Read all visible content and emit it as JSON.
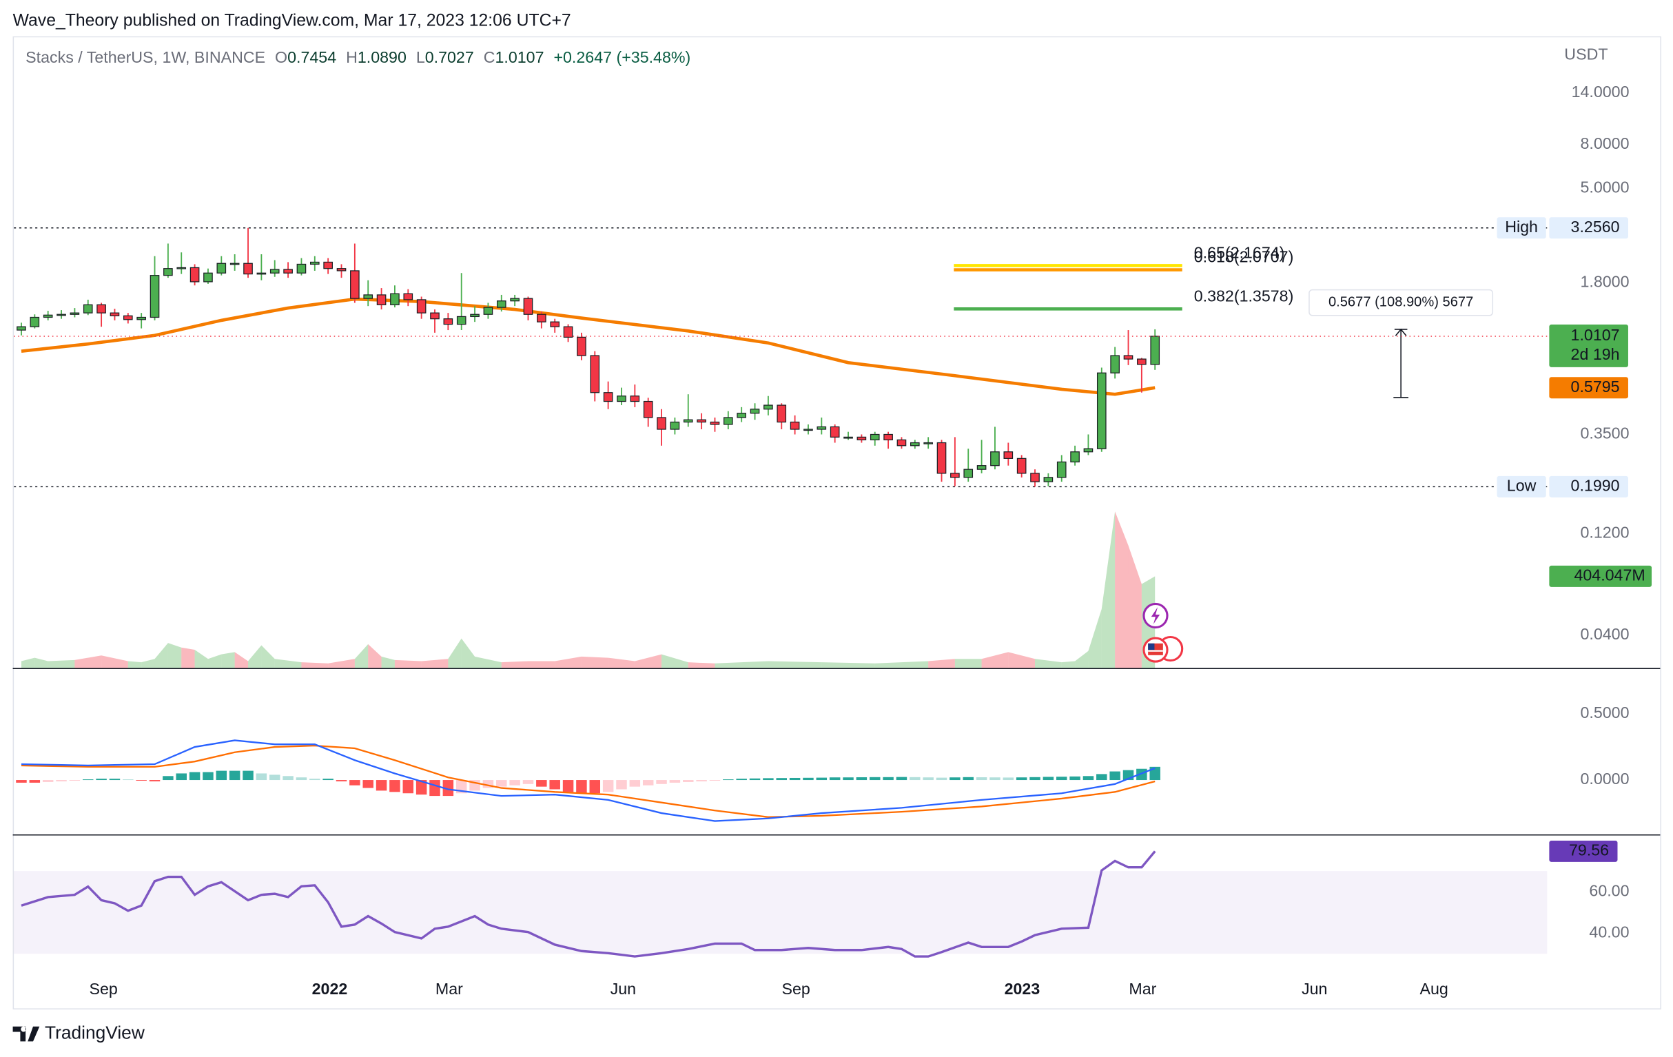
{
  "byline": "Wave_Theory published on TradingView.com, Mar 17, 2023 12:06 UTC+7",
  "footer": {
    "brand": "TradingView"
  },
  "chart_data": [
    {
      "type": "candlestick",
      "title": "Stacks / TetherUS, 1W, BINANCE",
      "ohlc": [
        {
          "key": "O",
          "value": "0.7454"
        },
        {
          "key": "H",
          "value": "1.0890"
        },
        {
          "key": "L",
          "value": "0.7027"
        },
        {
          "key": "C",
          "value": "1.0107"
        }
      ],
      "change": "+0.2647 (+35.48%)",
      "axis_unit": "USDT",
      "log_scale": true,
      "xlim": [
        -0.56,
        114.4
      ],
      "ylim": [
        0.0281,
        25.5
      ],
      "yticks": [
        {
          "value": 14,
          "label": "14.0000"
        },
        {
          "value": 8,
          "label": "8.0000"
        },
        {
          "value": 5,
          "label": "5.0000"
        },
        {
          "value": 1.8,
          "label": "1.8000"
        },
        {
          "value": 0.35,
          "label": "0.3500"
        },
        {
          "value": 0.12,
          "label": "0.1200"
        },
        {
          "value": 0.04,
          "label": "0.0400"
        }
      ],
      "up_color": "#4caf50",
      "down_color": "#f23645",
      "open": [
        1.08,
        1.12,
        1.24,
        1.27,
        1.28,
        1.3,
        1.42,
        1.3,
        1.26,
        1.21,
        1.24,
        1.95,
        2.1,
        2.12,
        1.82,
        2.0,
        2.22,
        2.22,
        1.98,
        2.0,
        2.08,
        2.0,
        2.2,
        2.25,
        2.1,
        2.05,
        1.52,
        1.58,
        1.42,
        1.6,
        1.5,
        1.3,
        1.22,
        1.15,
        1.25,
        1.28,
        1.38,
        1.48,
        1.52,
        1.28,
        1.18,
        1.12,
        1.0,
        0.82,
        0.55,
        0.5,
        0.53,
        0.5,
        0.42,
        0.37,
        0.4,
        0.41,
        0.4,
        0.39,
        0.42,
        0.44,
        0.46,
        0.48,
        0.4,
        0.37,
        0.37,
        0.38,
        0.34,
        0.34,
        0.33,
        0.35,
        0.33,
        0.31,
        0.32,
        0.32,
        0.23,
        0.22,
        0.24,
        0.25,
        0.29,
        0.27,
        0.23,
        0.21,
        0.22,
        0.26,
        0.29,
        0.3,
        0.68,
        0.82,
        0.79,
        0.7454
      ],
      "high": [
        1.17,
        1.28,
        1.33,
        1.34,
        1.37,
        1.5,
        1.45,
        1.36,
        1.3,
        1.3,
        2.4,
        2.75,
        2.5,
        2.2,
        2.1,
        2.4,
        2.45,
        3.256,
        2.45,
        2.3,
        2.25,
        2.35,
        2.4,
        2.35,
        2.2,
        2.75,
        1.85,
        1.7,
        1.75,
        1.68,
        1.55,
        1.35,
        1.3,
        2.0,
        1.4,
        1.45,
        1.58,
        1.58,
        1.55,
        1.32,
        1.22,
        1.15,
        1.05,
        0.86,
        0.62,
        0.58,
        0.6,
        0.52,
        0.46,
        0.42,
        0.54,
        0.44,
        0.42,
        0.45,
        0.47,
        0.49,
        0.53,
        0.49,
        0.43,
        0.39,
        0.42,
        0.39,
        0.36,
        0.35,
        0.36,
        0.36,
        0.34,
        0.33,
        0.34,
        0.33,
        0.34,
        0.3,
        0.33,
        0.38,
        0.32,
        0.28,
        0.24,
        0.23,
        0.28,
        0.31,
        0.35,
        0.72,
        0.9,
        1.08,
        0.8,
        1.089
      ],
      "low": [
        1.02,
        1.1,
        1.2,
        1.22,
        1.24,
        1.27,
        1.12,
        1.2,
        1.16,
        1.1,
        1.2,
        1.9,
        1.98,
        1.75,
        1.78,
        1.95,
        2.05,
        1.9,
        1.85,
        1.92,
        1.9,
        1.95,
        2.05,
        1.98,
        1.9,
        1.45,
        1.4,
        1.35,
        1.38,
        1.4,
        1.22,
        1.05,
        1.08,
        1.08,
        1.18,
        1.22,
        1.32,
        1.4,
        1.2,
        1.1,
        1.05,
        0.95,
        0.78,
        0.5,
        0.46,
        0.48,
        0.47,
        0.38,
        0.31,
        0.35,
        0.38,
        0.37,
        0.36,
        0.37,
        0.4,
        0.41,
        0.43,
        0.37,
        0.35,
        0.35,
        0.35,
        0.32,
        0.33,
        0.32,
        0.31,
        0.3,
        0.3,
        0.3,
        0.3,
        0.21,
        0.2,
        0.21,
        0.23,
        0.24,
        0.25,
        0.22,
        0.199,
        0.2,
        0.21,
        0.25,
        0.28,
        0.29,
        0.64,
        0.74,
        0.55,
        0.7027
      ],
      "close": [
        1.12,
        1.24,
        1.27,
        1.28,
        1.3,
        1.42,
        1.3,
        1.26,
        1.21,
        1.24,
        1.95,
        2.1,
        2.12,
        1.82,
        2.0,
        2.22,
        2.22,
        1.98,
        2.0,
        2.08,
        2.0,
        2.2,
        2.25,
        2.1,
        2.05,
        1.52,
        1.58,
        1.42,
        1.6,
        1.5,
        1.3,
        1.22,
        1.15,
        1.25,
        1.28,
        1.38,
        1.48,
        1.52,
        1.28,
        1.18,
        1.12,
        1.0,
        0.82,
        0.55,
        0.5,
        0.53,
        0.5,
        0.42,
        0.37,
        0.4,
        0.41,
        0.4,
        0.39,
        0.42,
        0.44,
        0.46,
        0.48,
        0.4,
        0.37,
        0.37,
        0.38,
        0.34,
        0.34,
        0.33,
        0.35,
        0.33,
        0.31,
        0.32,
        0.32,
        0.23,
        0.22,
        0.24,
        0.25,
        0.29,
        0.27,
        0.23,
        0.21,
        0.22,
        0.26,
        0.29,
        0.3,
        0.68,
        0.82,
        0.79,
        0.7454,
        1.0107
      ],
      "countdown": "2d 19h",
      "levels": [
        {
          "name": "High",
          "value": 3.256,
          "label": "3.2560"
        },
        {
          "name": "Low",
          "value": 0.199,
          "label": "0.1990"
        }
      ],
      "ma": {
        "color": "#f57c00",
        "x": [
          0,
          5,
          10,
          15,
          20,
          25,
          30,
          37,
          42,
          50,
          56,
          62,
          70,
          78,
          82,
          85
        ],
        "values": [
          0.86,
          0.93,
          1.02,
          1.2,
          1.37,
          1.51,
          1.47,
          1.35,
          1.23,
          1.07,
          0.94,
          0.76,
          0.66,
          0.57,
          0.54,
          0.5795
        ]
      },
      "fib": [
        {
          "value": 2.1674,
          "label": "0.65(2.1674)",
          "color": "#ffe600",
          "x": [
            69.92,
            87.04
          ]
        },
        {
          "value": 2.0707,
          "label": "0.618(2.0707)",
          "color": "#ff9800",
          "x": [
            69.92,
            87.04
          ]
        },
        {
          "value": 1.3578,
          "label": "0.382(1.3578)",
          "color": "#4caf50",
          "x": [
            69.92,
            87.04
          ]
        }
      ],
      "measure": {
        "x": 103.44,
        "from": 0.5213,
        "to": 1.089,
        "label": "0.5677 (108.90%) 5677"
      },
      "volume": {
        "ylim": [
          0,
          2780
        ],
        "x": [
          0,
          1,
          2,
          4,
          6,
          8,
          9,
          10,
          11,
          12,
          13,
          14,
          15,
          16,
          17,
          18,
          19,
          21,
          23,
          25,
          26,
          27,
          28,
          30,
          32,
          33,
          34,
          36,
          38,
          40,
          42,
          44,
          46,
          48,
          50,
          52,
          56,
          60,
          64,
          68,
          70,
          72,
          74,
          76,
          78,
          79,
          80,
          81,
          82,
          83,
          84,
          85
        ],
        "values": [
          30,
          45,
          30,
          35,
          55,
          30,
          25,
          40,
          110,
          90,
          80,
          40,
          60,
          70,
          30,
          100,
          40,
          25,
          20,
          40,
          105,
          50,
          35,
          30,
          40,
          130,
          50,
          25,
          30,
          30,
          50,
          45,
          30,
          60,
          25,
          20,
          30,
          25,
          20,
          30,
          40,
          40,
          70,
          40,
          25,
          30,
          75,
          260,
          690,
          540,
          370,
          404.047
        ],
        "last_label": "404.047M"
      }
    },
    {
      "type": "macd",
      "xlim": [
        -0.56,
        114.4
      ],
      "ylim": [
        -0.411,
        0.839
      ],
      "yticks": [
        {
          "value": 0.5,
          "label": "0.5000"
        },
        {
          "value": 0,
          "label": "0.0000"
        }
      ],
      "histogram": [
        -0.02,
        -0.02,
        -0.015,
        -0.01,
        -0.005,
        0.005,
        0.01,
        0.01,
        0.005,
        -0.005,
        -0.01,
        0.03,
        0.05,
        0.06,
        0.06,
        0.07,
        0.07,
        0.07,
        0.05,
        0.04,
        0.03,
        0.02,
        0.01,
        0.01,
        -0.01,
        -0.04,
        -0.06,
        -0.08,
        -0.09,
        -0.1,
        -0.11,
        -0.12,
        -0.12,
        -0.1,
        -0.08,
        -0.06,
        -0.05,
        -0.04,
        -0.03,
        -0.05,
        -0.07,
        -0.09,
        -0.1,
        -0.1,
        -0.09,
        -0.07,
        -0.05,
        -0.04,
        -0.03,
        -0.02,
        -0.015,
        -0.01,
        -0.005,
        0.005,
        0.01,
        0.012,
        0.014,
        0.015,
        0.016,
        0.017,
        0.018,
        0.02,
        0.02,
        0.021,
        0.022,
        0.022,
        0.023,
        0.022,
        0.02,
        0.018,
        0.02,
        0.022,
        0.021,
        0.02,
        0.019,
        0.02,
        0.022,
        0.024,
        0.025,
        0.027,
        0.03,
        0.045,
        0.065,
        0.075,
        0.085,
        0.1
      ],
      "macd": {
        "color": "#2962ff",
        "x": [
          0,
          5,
          10,
          13,
          16,
          19,
          22,
          25,
          28,
          32,
          36,
          40,
          44,
          48,
          52,
          56,
          60,
          66,
          72,
          78,
          82,
          85
        ],
        "values": [
          0.12,
          0.11,
          0.12,
          0.25,
          0.3,
          0.27,
          0.27,
          0.15,
          0.05,
          -0.07,
          -0.12,
          -0.11,
          -0.15,
          -0.25,
          -0.31,
          -0.29,
          -0.25,
          -0.21,
          -0.15,
          -0.1,
          -0.03,
          0.09
        ]
      },
      "signal": {
        "color": "#ff6d00",
        "x": [
          0,
          5,
          10,
          13,
          16,
          19,
          22,
          25,
          28,
          32,
          36,
          40,
          44,
          48,
          52,
          56,
          60,
          66,
          72,
          78,
          82,
          85
        ],
        "values": [
          0.11,
          0.1,
          0.1,
          0.14,
          0.21,
          0.25,
          0.26,
          0.24,
          0.15,
          0.02,
          -0.06,
          -0.09,
          -0.11,
          -0.17,
          -0.23,
          -0.28,
          -0.27,
          -0.24,
          -0.2,
          -0.14,
          -0.09,
          -0.01
        ]
      }
    },
    {
      "type": "line",
      "xlim": [
        -0.56,
        114.4
      ],
      "ylim": [
        3.6,
        87.2
      ],
      "yticks": [
        {
          "value": 60,
          "label": "60.00"
        },
        {
          "value": 40,
          "label": "40.00"
        }
      ],
      "band": [
        30,
        70
      ],
      "color": "#7e57c2",
      "x": [
        0,
        2,
        4,
        5,
        6,
        7,
        8,
        9,
        10,
        11,
        12,
        13,
        14,
        15,
        17,
        18,
        19,
        20,
        21,
        22,
        23,
        24,
        25,
        26,
        27,
        28,
        30,
        31,
        32,
        34,
        35,
        36,
        38,
        40,
        42,
        44,
        46,
        48,
        50,
        52,
        54,
        55,
        57,
        59,
        61,
        63,
        65,
        66,
        67,
        68,
        69,
        71,
        72,
        74,
        75,
        76,
        78,
        80,
        81,
        82,
        83,
        84,
        85
      ],
      "values": [
        53.3,
        57.4,
        58.5,
        62.5,
        55.9,
        54.4,
        50.8,
        53.3,
        65.1,
        67.2,
        67.2,
        58.5,
        62.6,
        64.6,
        55.9,
        58.5,
        59.0,
        57.4,
        62.6,
        63.1,
        54.9,
        43.1,
        44.1,
        48.2,
        44.6,
        40.5,
        37.4,
        42.1,
        43.1,
        48.2,
        44.1,
        42.1,
        40.5,
        34.4,
        31.3,
        30.3,
        28.7,
        30.3,
        32.3,
        34.9,
        34.9,
        31.8,
        31.8,
        32.8,
        31.8,
        31.8,
        33.3,
        32.3,
        28.7,
        28.7,
        30.8,
        35.4,
        33.3,
        33.3,
        35.9,
        39.0,
        42.1,
        42.6,
        70.3,
        74.9,
        71.8,
        71.8,
        79.56
      ],
      "xticks": [
        {
          "value": 6.16,
          "label": "Sep"
        },
        {
          "value": 23.12,
          "label": "2022"
        },
        {
          "value": 32.08,
          "label": "Mar"
        },
        {
          "value": 45.12,
          "label": "Jun"
        },
        {
          "value": 58.08,
          "label": "Sep"
        },
        {
          "value": 75.04,
          "label": "2023"
        },
        {
          "value": 84.08,
          "label": "Mar"
        },
        {
          "value": 96.96,
          "label": "Jun"
        },
        {
          "value": 105.92,
          "label": "Aug"
        }
      ]
    }
  ]
}
